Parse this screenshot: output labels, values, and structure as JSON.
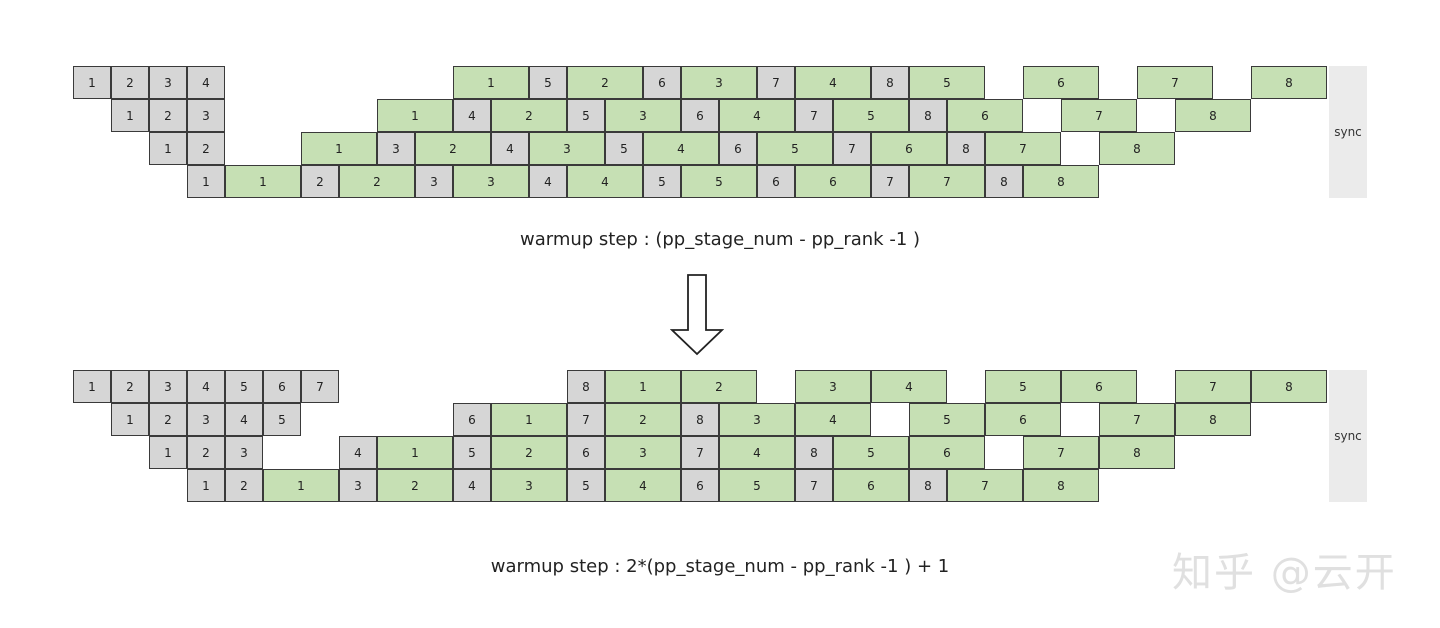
{
  "diagrams": [
    {
      "name": "original-schedule",
      "sync_label": "sync",
      "caption": "warmup step : (pp_stage_num - pp_rank -1 )",
      "rows": [
        [
          [
            "g",
            "1",
            0,
            1
          ],
          [
            "g",
            "2",
            1,
            1
          ],
          [
            "g",
            "3",
            2,
            1
          ],
          [
            "g",
            "4",
            3,
            1
          ],
          [
            "f",
            "1",
            10,
            2
          ],
          [
            "g",
            "5",
            12,
            1
          ],
          [
            "f",
            "2",
            13,
            2
          ],
          [
            "g",
            "6",
            15,
            1
          ],
          [
            "f",
            "3",
            16,
            2
          ],
          [
            "g",
            "7",
            18,
            1
          ],
          [
            "f",
            "4",
            19,
            2
          ],
          [
            "g",
            "8",
            21,
            1
          ],
          [
            "f",
            "5",
            22,
            2
          ],
          [
            "f",
            "6",
            25,
            2
          ],
          [
            "f",
            "7",
            28,
            2
          ],
          [
            "f",
            "8",
            31,
            2
          ]
        ],
        [
          [
            "g",
            "1",
            1,
            1
          ],
          [
            "g",
            "2",
            2,
            1
          ],
          [
            "g",
            "3",
            3,
            1
          ],
          [
            "f",
            "1",
            8,
            2
          ],
          [
            "g",
            "4",
            10,
            1
          ],
          [
            "f",
            "2",
            11,
            2
          ],
          [
            "g",
            "5",
            13,
            1
          ],
          [
            "f",
            "3",
            14,
            2
          ],
          [
            "g",
            "6",
            16,
            1
          ],
          [
            "f",
            "4",
            17,
            2
          ],
          [
            "g",
            "7",
            19,
            1
          ],
          [
            "f",
            "5",
            20,
            2
          ],
          [
            "g",
            "8",
            22,
            1
          ],
          [
            "f",
            "6",
            23,
            2
          ],
          [
            "f",
            "7",
            26,
            2
          ],
          [
            "f",
            "8",
            29,
            2
          ]
        ],
        [
          [
            "g",
            "1",
            2,
            1
          ],
          [
            "g",
            "2",
            3,
            1
          ],
          [
            "f",
            "1",
            6,
            2
          ],
          [
            "g",
            "3",
            8,
            1
          ],
          [
            "f",
            "2",
            9,
            2
          ],
          [
            "g",
            "4",
            11,
            1
          ],
          [
            "f",
            "3",
            12,
            2
          ],
          [
            "g",
            "5",
            14,
            1
          ],
          [
            "f",
            "4",
            15,
            2
          ],
          [
            "g",
            "6",
            17,
            1
          ],
          [
            "f",
            "5",
            18,
            2
          ],
          [
            "g",
            "7",
            20,
            1
          ],
          [
            "f",
            "6",
            21,
            2
          ],
          [
            "g",
            "8",
            23,
            1
          ],
          [
            "f",
            "7",
            24,
            2
          ],
          [
            "f",
            "8",
            27,
            2
          ]
        ],
        [
          [
            "g",
            "1",
            3,
            1
          ],
          [
            "f",
            "1",
            4,
            2
          ],
          [
            "g",
            "2",
            6,
            1
          ],
          [
            "f",
            "2",
            7,
            2
          ],
          [
            "g",
            "3",
            9,
            1
          ],
          [
            "f",
            "3",
            10,
            2
          ],
          [
            "g",
            "4",
            12,
            1
          ],
          [
            "f",
            "4",
            13,
            2
          ],
          [
            "g",
            "5",
            15,
            1
          ],
          [
            "f",
            "5",
            16,
            2
          ],
          [
            "g",
            "6",
            18,
            1
          ],
          [
            "f",
            "6",
            19,
            2
          ],
          [
            "g",
            "7",
            21,
            1
          ],
          [
            "f",
            "7",
            22,
            2
          ],
          [
            "g",
            "8",
            24,
            1
          ],
          [
            "f",
            "8",
            25,
            2
          ]
        ]
      ]
    },
    {
      "name": "modified-schedule",
      "sync_label": "sync",
      "caption": "warmup step : 2*(pp_stage_num - pp_rank -1 ) + 1",
      "rows": [
        [
          [
            "g",
            "1",
            0,
            1
          ],
          [
            "g",
            "2",
            1,
            1
          ],
          [
            "g",
            "3",
            2,
            1
          ],
          [
            "g",
            "4",
            3,
            1
          ],
          [
            "g",
            "5",
            4,
            1
          ],
          [
            "g",
            "6",
            5,
            1
          ],
          [
            "g",
            "7",
            6,
            1
          ],
          [
            "g",
            "8",
            13,
            1
          ],
          [
            "f",
            "1",
            14,
            2
          ],
          [
            "f",
            "2",
            16,
            2
          ],
          [
            "f",
            "3",
            19,
            2
          ],
          [
            "f",
            "4",
            21,
            2
          ],
          [
            "f",
            "5",
            24,
            2
          ],
          [
            "f",
            "6",
            26,
            2
          ],
          [
            "f",
            "7",
            29,
            2
          ],
          [
            "f",
            "8",
            31,
            2
          ]
        ],
        [
          [
            "g",
            "1",
            1,
            1
          ],
          [
            "g",
            "2",
            2,
            1
          ],
          [
            "g",
            "3",
            3,
            1
          ],
          [
            "g",
            "4",
            4,
            1
          ],
          [
            "g",
            "5",
            5,
            1
          ],
          [
            "g",
            "6",
            10,
            1
          ],
          [
            "f",
            "1",
            11,
            2
          ],
          [
            "g",
            "7",
            13,
            1
          ],
          [
            "f",
            "2",
            14,
            2
          ],
          [
            "g",
            "8",
            16,
            1
          ],
          [
            "f",
            "3",
            17,
            2
          ],
          [
            "f",
            "4",
            19,
            2
          ],
          [
            "f",
            "5",
            22,
            2
          ],
          [
            "f",
            "6",
            24,
            2
          ],
          [
            "f",
            "7",
            27,
            2
          ],
          [
            "f",
            "8",
            29,
            2
          ]
        ],
        [
          [
            "g",
            "1",
            2,
            1
          ],
          [
            "g",
            "2",
            3,
            1
          ],
          [
            "g",
            "3",
            4,
            1
          ],
          [
            "g",
            "4",
            7,
            1
          ],
          [
            "f",
            "1",
            8,
            2
          ],
          [
            "g",
            "5",
            10,
            1
          ],
          [
            "f",
            "2",
            11,
            2
          ],
          [
            "g",
            "6",
            13,
            1
          ],
          [
            "f",
            "3",
            14,
            2
          ],
          [
            "g",
            "7",
            16,
            1
          ],
          [
            "f",
            "4",
            17,
            2
          ],
          [
            "g",
            "8",
            19,
            1
          ],
          [
            "f",
            "5",
            20,
            2
          ],
          [
            "f",
            "6",
            22,
            2
          ],
          [
            "f",
            "7",
            25,
            2
          ],
          [
            "f",
            "8",
            27,
            2
          ]
        ],
        [
          [
            "g",
            "1",
            3,
            1
          ],
          [
            "g",
            "2",
            4,
            1
          ],
          [
            "f",
            "1",
            5,
            2
          ],
          [
            "g",
            "3",
            7,
            1
          ],
          [
            "f",
            "2",
            8,
            2
          ],
          [
            "g",
            "4",
            10,
            1
          ],
          [
            "f",
            "3",
            11,
            2
          ],
          [
            "g",
            "5",
            13,
            1
          ],
          [
            "f",
            "4",
            14,
            2
          ],
          [
            "g",
            "6",
            16,
            1
          ],
          [
            "f",
            "5",
            17,
            2
          ],
          [
            "g",
            "7",
            19,
            1
          ],
          [
            "f",
            "6",
            20,
            2
          ],
          [
            "g",
            "8",
            22,
            1
          ],
          [
            "f",
            "7",
            23,
            2
          ],
          [
            "f",
            "8",
            25,
            2
          ]
        ]
      ]
    }
  ],
  "watermark": "知乎 @云开"
}
